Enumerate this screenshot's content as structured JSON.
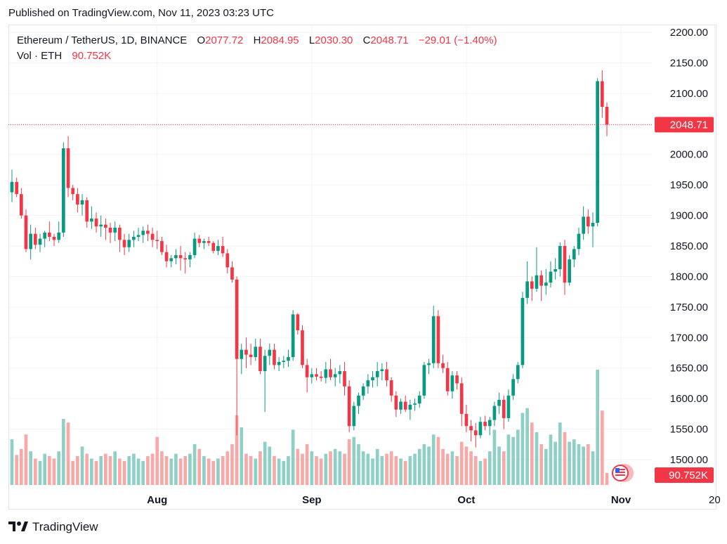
{
  "header": {
    "published": "Published on TradingView.com, Nov 11, 2023 03:23 UTC"
  },
  "legend": {
    "symbol": "Ethereum / TetherUS, 1D, BINANCE",
    "o_label": "O",
    "o_value": "2077.72",
    "h_label": "H",
    "h_value": "2084.95",
    "l_label": "L",
    "l_value": "2030.30",
    "c_label": "C",
    "c_value": "2048.71",
    "change": "−29.01 (−1.40%)",
    "vol_label": "Vol · ETH",
    "vol_value": "90.752K"
  },
  "footer": {
    "brand": "TradingView"
  },
  "colors": {
    "up": "#089981",
    "down": "#f23645",
    "up_vol": "#8fd0c6",
    "down_vol": "#f7a9a7",
    "grid": "#f0f3fa"
  },
  "chart_data": {
    "type": "candlestick",
    "y_ticks": [
      "2200.00",
      "2150.00",
      "2100.00",
      "2050.00",
      "2000.00",
      "1950.00",
      "1900.00",
      "1850.00",
      "1800.00",
      "1750.00",
      "1700.00",
      "1650.00",
      "1600.00",
      "1550.00",
      "1500.00"
    ],
    "ylim": [
      1480,
      2210
    ],
    "x_ticks": [
      "Aug",
      "Sep",
      "Oct",
      "Nov",
      "20"
    ],
    "last_price_label": "2048.71",
    "last_volume_label": "90.752K",
    "grid": true,
    "candles": [
      [
        1938,
        1975,
        1922,
        1955,
        38
      ],
      [
        1955,
        1962,
        1930,
        1935,
        25
      ],
      [
        1935,
        1945,
        1895,
        1900,
        30
      ],
      [
        1900,
        1910,
        1840,
        1845,
        42
      ],
      [
        1845,
        1885,
        1828,
        1870,
        28
      ],
      [
        1870,
        1880,
        1845,
        1852,
        22
      ],
      [
        1852,
        1870,
        1840,
        1862,
        20
      ],
      [
        1862,
        1875,
        1848,
        1872,
        26
      ],
      [
        1872,
        1890,
        1858,
        1865,
        24
      ],
      [
        1865,
        1870,
        1850,
        1860,
        22
      ],
      [
        1860,
        1890,
        1855,
        1872,
        28
      ],
      [
        1872,
        2020,
        1865,
        2010,
        55
      ],
      [
        2010,
        2030,
        1930,
        1945,
        52
      ],
      [
        1945,
        1950,
        1925,
        1935,
        20
      ],
      [
        1935,
        1945,
        1905,
        1918,
        24
      ],
      [
        1918,
        1935,
        1900,
        1925,
        32
      ],
      [
        1925,
        1930,
        1880,
        1890,
        26
      ],
      [
        1890,
        1915,
        1878,
        1895,
        22
      ],
      [
        1895,
        1905,
        1872,
        1882,
        20
      ],
      [
        1882,
        1900,
        1865,
        1885,
        24
      ],
      [
        1885,
        1895,
        1860,
        1880,
        26
      ],
      [
        1880,
        1888,
        1855,
        1872,
        24
      ],
      [
        1872,
        1890,
        1858,
        1880,
        28
      ],
      [
        1880,
        1885,
        1840,
        1860,
        22
      ],
      [
        1860,
        1870,
        1835,
        1848,
        20
      ],
      [
        1848,
        1870,
        1840,
        1860,
        24
      ],
      [
        1860,
        1875,
        1848,
        1865,
        26
      ],
      [
        1865,
        1880,
        1858,
        1868,
        22
      ],
      [
        1868,
        1882,
        1855,
        1875,
        20
      ],
      [
        1875,
        1885,
        1858,
        1870,
        24
      ],
      [
        1870,
        1880,
        1848,
        1860,
        26
      ],
      [
        1860,
        1875,
        1845,
        1858,
        40
      ],
      [
        1858,
        1865,
        1835,
        1840,
        28
      ],
      [
        1840,
        1852,
        1815,
        1825,
        24
      ],
      [
        1825,
        1835,
        1815,
        1830,
        22
      ],
      [
        1830,
        1845,
        1820,
        1835,
        26
      ],
      [
        1835,
        1850,
        1810,
        1830,
        22
      ],
      [
        1830,
        1840,
        1805,
        1828,
        24
      ],
      [
        1828,
        1840,
        1815,
        1835,
        26
      ],
      [
        1835,
        1872,
        1830,
        1862,
        34
      ],
      [
        1862,
        1868,
        1848,
        1855,
        30
      ],
      [
        1855,
        1862,
        1845,
        1858,
        24
      ],
      [
        1858,
        1865,
        1850,
        1855,
        22
      ],
      [
        1855,
        1858,
        1838,
        1842,
        20
      ],
      [
        1842,
        1860,
        1835,
        1850,
        22
      ],
      [
        1850,
        1865,
        1832,
        1838,
        24
      ],
      [
        1838,
        1845,
        1805,
        1815,
        28
      ],
      [
        1815,
        1825,
        1790,
        1795,
        34
      ],
      [
        1795,
        1800,
        1540,
        1665,
        58
      ],
      [
        1665,
        1690,
        1640,
        1680,
        48
      ],
      [
        1680,
        1700,
        1650,
        1672,
        26
      ],
      [
        1672,
        1690,
        1655,
        1668,
        24
      ],
      [
        1668,
        1698,
        1662,
        1685,
        22
      ],
      [
        1685,
        1698,
        1640,
        1645,
        28
      ],
      [
        1645,
        1680,
        1578,
        1670,
        36
      ],
      [
        1670,
        1690,
        1655,
        1680,
        32
      ],
      [
        1680,
        1690,
        1648,
        1655,
        24
      ],
      [
        1655,
        1668,
        1645,
        1660,
        22
      ],
      [
        1660,
        1670,
        1650,
        1662,
        20
      ],
      [
        1662,
        1680,
        1652,
        1668,
        24
      ],
      [
        1668,
        1745,
        1662,
        1738,
        46
      ],
      [
        1738,
        1740,
        1705,
        1712,
        30
      ],
      [
        1712,
        1720,
        1650,
        1655,
        26
      ],
      [
        1655,
        1665,
        1610,
        1635,
        34
      ],
      [
        1635,
        1650,
        1625,
        1640,
        28
      ],
      [
        1640,
        1650,
        1630,
        1636,
        24
      ],
      [
        1636,
        1645,
        1628,
        1634,
        22
      ],
      [
        1634,
        1660,
        1625,
        1648,
        26
      ],
      [
        1648,
        1665,
        1630,
        1635,
        28
      ],
      [
        1635,
        1650,
        1620,
        1640,
        30
      ],
      [
        1640,
        1655,
        1625,
        1645,
        28
      ],
      [
        1645,
        1660,
        1605,
        1620,
        26
      ],
      [
        1620,
        1630,
        1545,
        1555,
        38
      ],
      [
        1555,
        1595,
        1548,
        1588,
        40
      ],
      [
        1588,
        1610,
        1575,
        1605,
        34
      ],
      [
        1605,
        1625,
        1598,
        1620,
        28
      ],
      [
        1620,
        1640,
        1608,
        1630,
        26
      ],
      [
        1630,
        1645,
        1618,
        1635,
        22
      ],
      [
        1635,
        1660,
        1620,
        1645,
        30
      ],
      [
        1645,
        1658,
        1630,
        1648,
        24
      ],
      [
        1648,
        1660,
        1620,
        1630,
        26
      ],
      [
        1630,
        1635,
        1595,
        1605,
        28
      ],
      [
        1605,
        1612,
        1570,
        1582,
        24
      ],
      [
        1582,
        1600,
        1575,
        1595,
        22
      ],
      [
        1595,
        1605,
        1578,
        1582,
        20
      ],
      [
        1582,
        1598,
        1565,
        1590,
        24
      ],
      [
        1590,
        1600,
        1580,
        1592,
        26
      ],
      [
        1592,
        1612,
        1585,
        1605,
        30
      ],
      [
        1605,
        1660,
        1600,
        1655,
        34
      ],
      [
        1655,
        1665,
        1640,
        1658,
        32
      ],
      [
        1658,
        1752,
        1650,
        1735,
        42
      ],
      [
        1735,
        1745,
        1650,
        1658,
        40
      ],
      [
        1658,
        1672,
        1642,
        1650,
        30
      ],
      [
        1650,
        1660,
        1605,
        1612,
        26
      ],
      [
        1612,
        1645,
        1600,
        1638,
        28
      ],
      [
        1638,
        1645,
        1615,
        1625,
        24
      ],
      [
        1625,
        1635,
        1555,
        1575,
        36
      ],
      [
        1575,
        1590,
        1545,
        1555,
        32
      ],
      [
        1555,
        1565,
        1530,
        1548,
        28
      ],
      [
        1548,
        1560,
        1520,
        1540,
        24
      ],
      [
        1540,
        1570,
        1535,
        1562,
        20
      ],
      [
        1562,
        1572,
        1548,
        1555,
        22
      ],
      [
        1555,
        1570,
        1540,
        1565,
        28
      ],
      [
        1565,
        1595,
        1555,
        1588,
        46
      ],
      [
        1588,
        1610,
        1575,
        1598,
        32
      ],
      [
        1598,
        1605,
        1550,
        1568,
        28
      ],
      [
        1568,
        1615,
        1562,
        1605,
        42
      ],
      [
        1605,
        1640,
        1598,
        1632,
        40
      ],
      [
        1632,
        1660,
        1625,
        1655,
        46
      ],
      [
        1655,
        1775,
        1650,
        1765,
        60
      ],
      [
        1765,
        1825,
        1755,
        1792,
        64
      ],
      [
        1792,
        1800,
        1760,
        1780,
        52
      ],
      [
        1780,
        1848,
        1775,
        1802,
        44
      ],
      [
        1802,
        1810,
        1760,
        1785,
        34
      ],
      [
        1785,
        1812,
        1770,
        1790,
        30
      ],
      [
        1790,
        1825,
        1782,
        1808,
        42
      ],
      [
        1808,
        1830,
        1795,
        1812,
        36
      ],
      [
        1812,
        1856,
        1800,
        1850,
        52
      ],
      [
        1850,
        1860,
        1770,
        1790,
        44
      ],
      [
        1790,
        1835,
        1785,
        1828,
        36
      ],
      [
        1828,
        1850,
        1815,
        1845,
        38
      ],
      [
        1845,
        1880,
        1835,
        1870,
        34
      ],
      [
        1870,
        1915,
        1860,
        1898,
        32
      ],
      [
        1898,
        1910,
        1870,
        1882,
        34
      ],
      [
        1882,
        1905,
        1848,
        1888,
        28
      ],
      [
        1888,
        2125,
        1882,
        2120,
        96
      ],
      [
        2120,
        2138,
        2060,
        2078,
        62
      ],
      [
        2078,
        2085,
        2030,
        2049,
        10
      ]
    ]
  }
}
